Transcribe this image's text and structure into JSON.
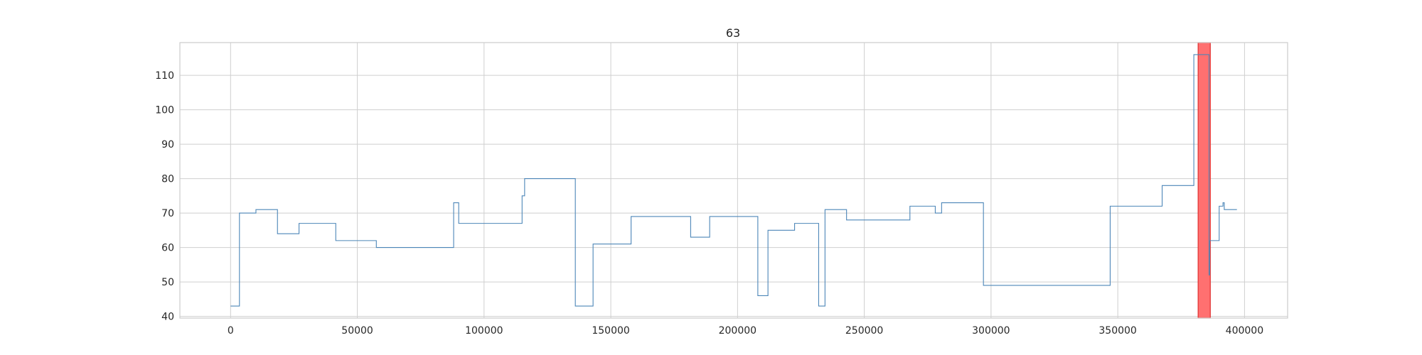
{
  "chart_data": {
    "type": "line",
    "title": "63",
    "xlabel": "",
    "ylabel": "",
    "xlim": [
      -20000,
      417000
    ],
    "ylim": [
      39.5,
      119.5
    ],
    "grid": true,
    "x_ticks": [
      0,
      50000,
      100000,
      150000,
      200000,
      250000,
      300000,
      350000,
      400000
    ],
    "y_ticks": [
      40,
      50,
      60,
      70,
      80,
      90,
      100,
      110
    ],
    "colors": {
      "line": "#4c86b8",
      "highlight": "#ff7070",
      "highlight_edge": "#e03030",
      "grid": "#cfcfcf",
      "frame": "#cccccc"
    },
    "highlight_band": {
      "x_start": 381700,
      "x_end": 386500
    },
    "series": [
      {
        "x": [
          0,
          3500,
          3500,
          10000,
          10000,
          18500,
          18500,
          27000,
          27000,
          41500,
          41500,
          57500,
          57500,
          88000,
          88000,
          90000,
          90000,
          115000,
          115000,
          116000,
          116000,
          136000,
          136000,
          143000,
          143000,
          158000,
          158000,
          181500,
          181500,
          189000,
          189000,
          208000,
          208000,
          212000,
          212000,
          222500,
          222500,
          232000,
          232000,
          234500,
          234500,
          243000,
          243000,
          268000,
          268000,
          278000,
          278000,
          280500,
          280500,
          297000,
          297000,
          347000,
          347000,
          367500,
          367500,
          380000,
          380000,
          386000,
          386000,
          386200,
          386200,
          390000,
          390000,
          391500,
          391500,
          392000,
          392000,
          397000
        ],
        "y": [
          43,
          43,
          70,
          70,
          71,
          71,
          64,
          64,
          67,
          67,
          62,
          62,
          60,
          60,
          73,
          73,
          67,
          67,
          75,
          75,
          80,
          80,
          43,
          43,
          61,
          61,
          69,
          69,
          63,
          63,
          69,
          69,
          46,
          46,
          65,
          65,
          67,
          67,
          43,
          43,
          71,
          71,
          68,
          68,
          72,
          72,
          70,
          70,
          73,
          73,
          49,
          49,
          72,
          72,
          78,
          78,
          116,
          116,
          52,
          52,
          62,
          62,
          72,
          72,
          73,
          73,
          71,
          71
        ]
      }
    ]
  }
}
